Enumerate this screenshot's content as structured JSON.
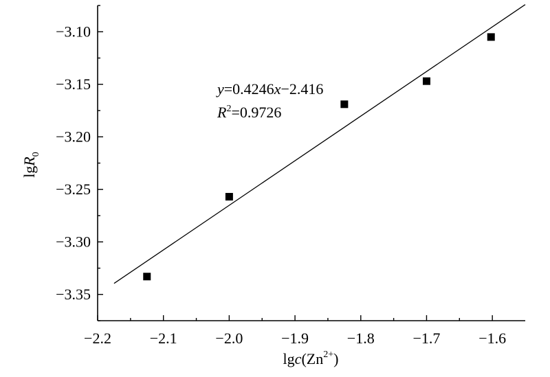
{
  "chart_data": {
    "type": "scatter",
    "title": "",
    "xlabel": {
      "prefix": "lg",
      "italic": "c",
      "rest": "(Zn",
      "sup": "2+",
      "close": ")"
    },
    "ylabel": {
      "prefix": "lg",
      "italic": "R",
      "sub": "0"
    },
    "xlim": [
      -2.2,
      -1.55
    ],
    "ylim": [
      -3.375,
      -3.075
    ],
    "xticks": [
      -2.2,
      -2.1,
      -2.0,
      -1.9,
      -1.8,
      -1.7,
      -1.6
    ],
    "xtick_labels": [
      "−2.2",
      "−2.1",
      "−2.0",
      "−1.9",
      "−1.8",
      "−1.7",
      "−1.6"
    ],
    "yticks": [
      -3.35,
      -3.3,
      -3.25,
      -3.2,
      -3.15,
      -3.1
    ],
    "ytick_labels": [
      "−3.35",
      "−3.30",
      "−3.25",
      "−3.20",
      "−3.15",
      "−3.10"
    ],
    "points": [
      {
        "x": -2.125,
        "y": -3.333
      },
      {
        "x": -2.0,
        "y": -3.257
      },
      {
        "x": -1.825,
        "y": -3.169
      },
      {
        "x": -1.7,
        "y": -3.147
      },
      {
        "x": -1.602,
        "y": -3.105
      }
    ],
    "fit": {
      "slope": 0.4246,
      "intercept": -2.416,
      "x_range": [
        -2.175,
        -1.55
      ]
    },
    "equation": {
      "y_var": "y",
      "eq_text": "=0.4246",
      "x_var": "x",
      "rest": "−2.416"
    },
    "r_squared": {
      "var": "R",
      "sup": "2",
      "value_text": "=0.9726"
    },
    "grid": false,
    "legend": "none"
  }
}
